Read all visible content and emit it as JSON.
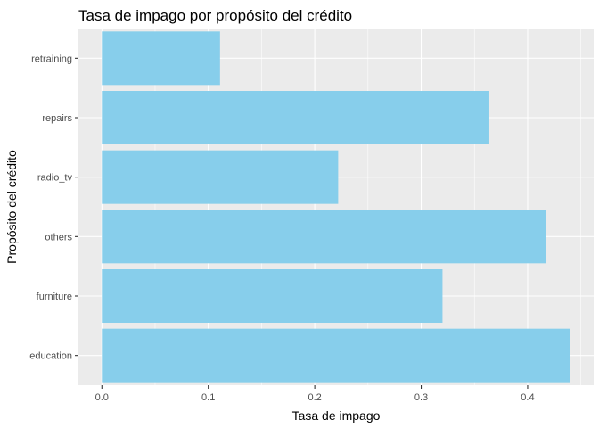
{
  "chart_data": {
    "type": "bar",
    "orientation": "horizontal",
    "title": "Tasa de impago por propósito del crédito",
    "xlabel": "Tasa de impago",
    "ylabel": "Propósito del crédito",
    "categories": [
      "education",
      "furniture",
      "others",
      "radio_tv",
      "repairs",
      "retraining"
    ],
    "values": [
      0.44,
      0.32,
      0.417,
      0.222,
      0.364,
      0.111
    ],
    "xlim": [
      -0.022,
      0.462
    ],
    "xticks": [
      0.0,
      0.1,
      0.2,
      0.3,
      0.4
    ],
    "xtick_labels": [
      "0.0",
      "0.1",
      "0.2",
      "0.3",
      "0.4"
    ],
    "grid": true,
    "colors": {
      "bar": "#87ceeb",
      "panel": "#ebebeb",
      "grid": "#ffffff"
    }
  }
}
